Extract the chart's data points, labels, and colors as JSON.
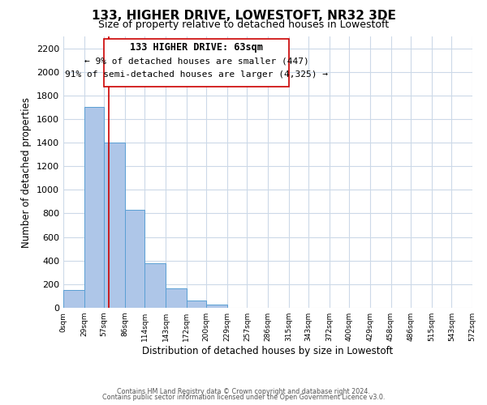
{
  "title": "133, HIGHER DRIVE, LOWESTOFT, NR32 3DE",
  "subtitle": "Size of property relative to detached houses in Lowestoft",
  "xlabel": "Distribution of detached houses by size in Lowestoft",
  "ylabel": "Number of detached properties",
  "bin_edges": [
    0,
    29,
    57,
    86,
    114,
    143,
    172,
    200,
    229,
    257,
    286,
    315,
    343,
    372,
    400,
    429,
    458,
    486,
    515,
    543,
    572
  ],
  "bin_labels": [
    "0sqm",
    "29sqm",
    "57sqm",
    "86sqm",
    "114sqm",
    "143sqm",
    "172sqm",
    "200sqm",
    "229sqm",
    "257sqm",
    "286sqm",
    "315sqm",
    "343sqm",
    "372sqm",
    "400sqm",
    "429sqm",
    "458sqm",
    "486sqm",
    "515sqm",
    "543sqm",
    "572sqm"
  ],
  "bar_heights": [
    150,
    1700,
    1400,
    830,
    380,
    165,
    60,
    25,
    0,
    0,
    0,
    0,
    0,
    0,
    0,
    0,
    0,
    0,
    0,
    0
  ],
  "bar_color": "#aec6e8",
  "bar_edge_color": "#5a9fd4",
  "ylim": [
    0,
    2300
  ],
  "yticks": [
    0,
    200,
    400,
    600,
    800,
    1000,
    1200,
    1400,
    1600,
    1800,
    2000,
    2200
  ],
  "vline_x": 63,
  "vline_color": "#cc0000",
  "ann_line1": "133 HIGHER DRIVE: 63sqm",
  "ann_line2": "← 9% of detached houses are smaller (447)",
  "ann_line3": "91% of semi-detached houses are larger (4,325) →",
  "footer_line1": "Contains HM Land Registry data © Crown copyright and database right 2024.",
  "footer_line2": "Contains public sector information licensed under the Open Government Licence v3.0.",
  "background_color": "#ffffff",
  "grid_color": "#ccd9e8"
}
